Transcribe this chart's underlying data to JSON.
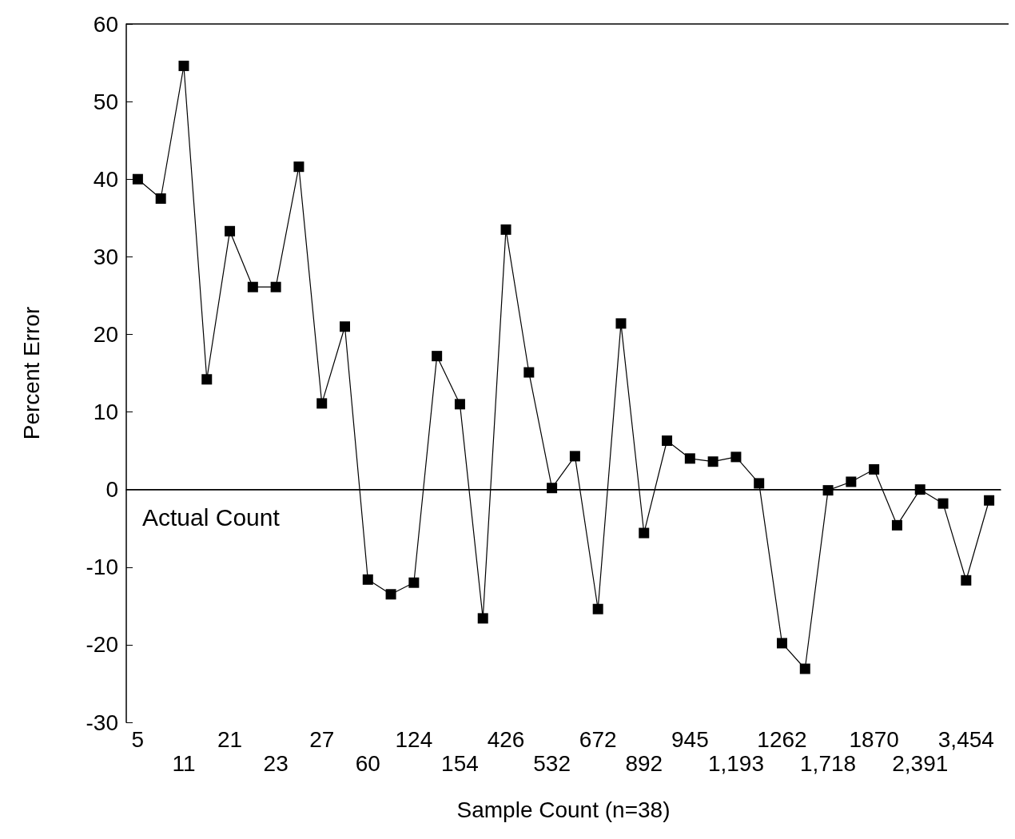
{
  "chart_data": {
    "type": "line",
    "xlabel": "Sample Count (n=38)",
    "ylabel": "Percent Error",
    "categories": [
      "5",
      null,
      "11",
      null,
      "21",
      null,
      "23",
      null,
      "27",
      null,
      "60",
      null,
      "124",
      null,
      "154",
      null,
      "426",
      null,
      "532",
      null,
      "672",
      null,
      "892",
      null,
      "945",
      null,
      "1,193",
      null,
      "1262",
      null,
      "1,718",
      null,
      "1870",
      null,
      "2,391",
      null,
      "3,454",
      null
    ],
    "series": [
      {
        "color": "#000000",
        "values": [
          40,
          37.5,
          54.6,
          14.2,
          33.3,
          26.1,
          26.1,
          41.6,
          11.1,
          21.0,
          -11.6,
          -13.5,
          -12.0,
          17.2,
          11.0,
          -16.6,
          33.5,
          15.1,
          0.2,
          4.3,
          -15.4,
          21.4,
          -5.6,
          6.3,
          4.0,
          3.6,
          4.2,
          0.8,
          -19.8,
          -23.1,
          -0.1,
          1.0,
          2.6,
          -4.6,
          0,
          -1.8,
          -11.7,
          -1.4
        ]
      }
    ],
    "ylim": [
      -30,
      60
    ],
    "yticks": [
      -30,
      -20,
      -10,
      0,
      10,
      20,
      30,
      40,
      50,
      60
    ],
    "ref_lines": [
      {
        "axis": "y",
        "value": 0,
        "label": "Actual Count",
        "color": "#000000"
      }
    ],
    "marker": "square",
    "line_style": "solid",
    "grid": false
  }
}
